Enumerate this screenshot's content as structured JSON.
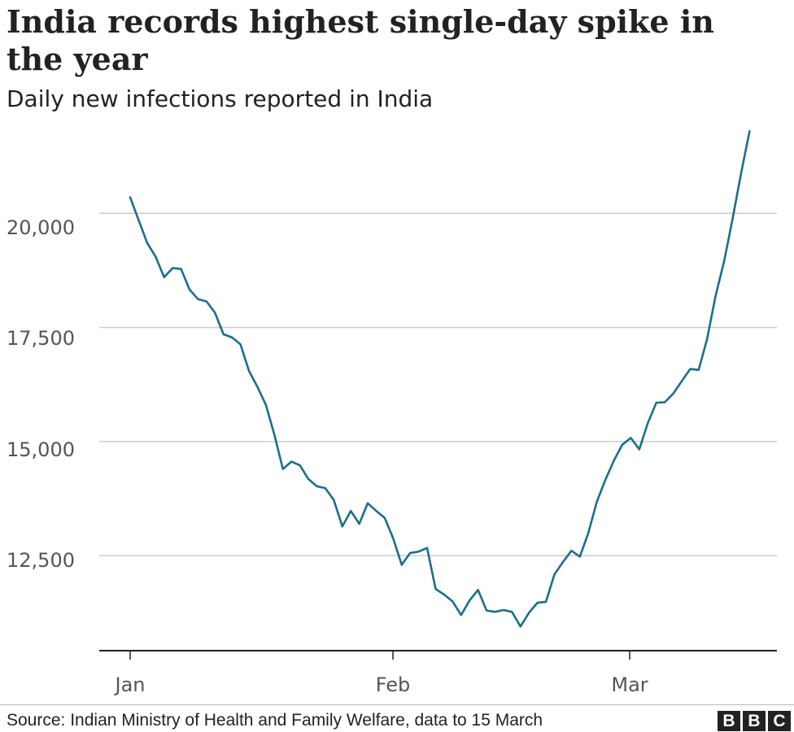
{
  "chart_data": {
    "type": "line",
    "title": "India records highest single-day spike in the year",
    "subtitle": "Daily new infections reported in India",
    "xlabel": "",
    "ylabel": "",
    "x_tick_labels": [
      "Jan",
      "Feb",
      "Mar"
    ],
    "y_tick_labels": [
      "20,000",
      "17,500",
      "15,000",
      "12,500"
    ],
    "y_ticks": [
      20000,
      17500,
      15000,
      12500
    ],
    "ylim": [
      10420,
      22000
    ],
    "grid": true,
    "series": [
      {
        "color": "#1c6e8c",
        "x": [
          "2021-01-01",
          "2021-01-02",
          "2021-01-03",
          "2021-01-04",
          "2021-01-05",
          "2021-01-06",
          "2021-01-07",
          "2021-01-08",
          "2021-01-09",
          "2021-01-10",
          "2021-01-11",
          "2021-01-12",
          "2021-01-13",
          "2021-01-14",
          "2021-01-15",
          "2021-01-16",
          "2021-01-17",
          "2021-01-18",
          "2021-01-19",
          "2021-01-20",
          "2021-01-21",
          "2021-01-22",
          "2021-01-23",
          "2021-01-24",
          "2021-01-25",
          "2021-01-26",
          "2021-01-27",
          "2021-01-28",
          "2021-01-29",
          "2021-01-30",
          "2021-01-31",
          "2021-02-01",
          "2021-02-02",
          "2021-02-03",
          "2021-02-04",
          "2021-02-05",
          "2021-02-06",
          "2021-02-07",
          "2021-02-08",
          "2021-02-09",
          "2021-02-10",
          "2021-02-11",
          "2021-02-12",
          "2021-02-13",
          "2021-02-14",
          "2021-02-15",
          "2021-02-16",
          "2021-02-17",
          "2021-02-18",
          "2021-02-19",
          "2021-02-20",
          "2021-02-21",
          "2021-02-22",
          "2021-02-23",
          "2021-02-24",
          "2021-02-25",
          "2021-02-26",
          "2021-02-27",
          "2021-02-28",
          "2021-03-01",
          "2021-03-02",
          "2021-03-03",
          "2021-03-04",
          "2021-03-05",
          "2021-03-06",
          "2021-03-07",
          "2021-03-08",
          "2021-03-09",
          "2021-03-10",
          "2021-03-11",
          "2021-03-12",
          "2021-03-13",
          "2021-03-14",
          "2021-03-15"
        ],
        "values": [
          20350,
          19850,
          19350,
          19050,
          18600,
          18800,
          18780,
          18330,
          18120,
          18070,
          17820,
          17350,
          17280,
          17130,
          16550,
          16200,
          15800,
          15150,
          14400,
          14560,
          14480,
          14180,
          14020,
          13980,
          13720,
          13140,
          13480,
          13200,
          13650,
          13480,
          13330,
          12880,
          12300,
          12560,
          12590,
          12670,
          11770,
          11650,
          11500,
          11200,
          11520,
          11750,
          11300,
          11270,
          11310,
          11270,
          10950,
          11250,
          11470,
          11490,
          12090,
          12360,
          12610,
          12480,
          13000,
          13680,
          14160,
          14580,
          14930,
          15080,
          14830,
          15400,
          15850,
          15860,
          16050,
          16320,
          16590,
          16570,
          17250,
          18200,
          18950,
          19880,
          20880,
          21800
        ]
      }
    ]
  },
  "footer": {
    "source": "Source: Indian Ministry of Health and Family Welfare, data to 15 March",
    "logo_text": "BBC",
    "logo_letters": [
      "B",
      "B",
      "C"
    ]
  },
  "colors": {
    "line": "#1c6e8c",
    "grid": "#cccccc",
    "axis": "#222222",
    "text": "#222222",
    "tick_text": "#555555"
  }
}
